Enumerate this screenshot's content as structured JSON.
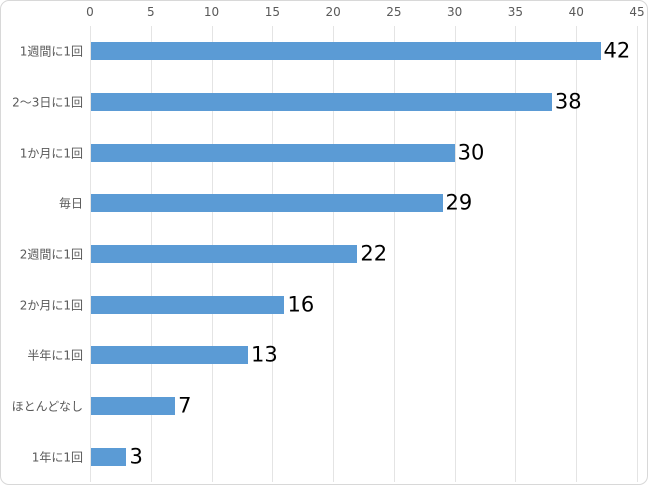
{
  "chart_data": {
    "type": "bar",
    "orientation": "horizontal",
    "title": "",
    "xlabel": "",
    "ylabel": "",
    "categories": [
      "1週間に1回",
      "2～3日に1回",
      "1か月に1回",
      "毎日",
      "2週間に1回",
      "2か月に1回",
      "半年に1回",
      "ほとんどなし",
      "1年に1回"
    ],
    "values": [
      42,
      38,
      30,
      29,
      22,
      16,
      13,
      7,
      3
    ],
    "xlim": [
      0,
      45
    ],
    "x_ticks": [
      0,
      5,
      10,
      15,
      20,
      25,
      30,
      35,
      40,
      45
    ],
    "grid": true,
    "axis_position": "top",
    "data_labels_shown": true,
    "legend": "none",
    "colors": {
      "bar_fill": "#5b9bd5",
      "axis_text": "#595959",
      "category_text": "#595959",
      "data_label_text": "#000000",
      "gridline": "#e4e4e4",
      "frame_border": "#d8d8d8",
      "background": "#ffffff"
    }
  }
}
